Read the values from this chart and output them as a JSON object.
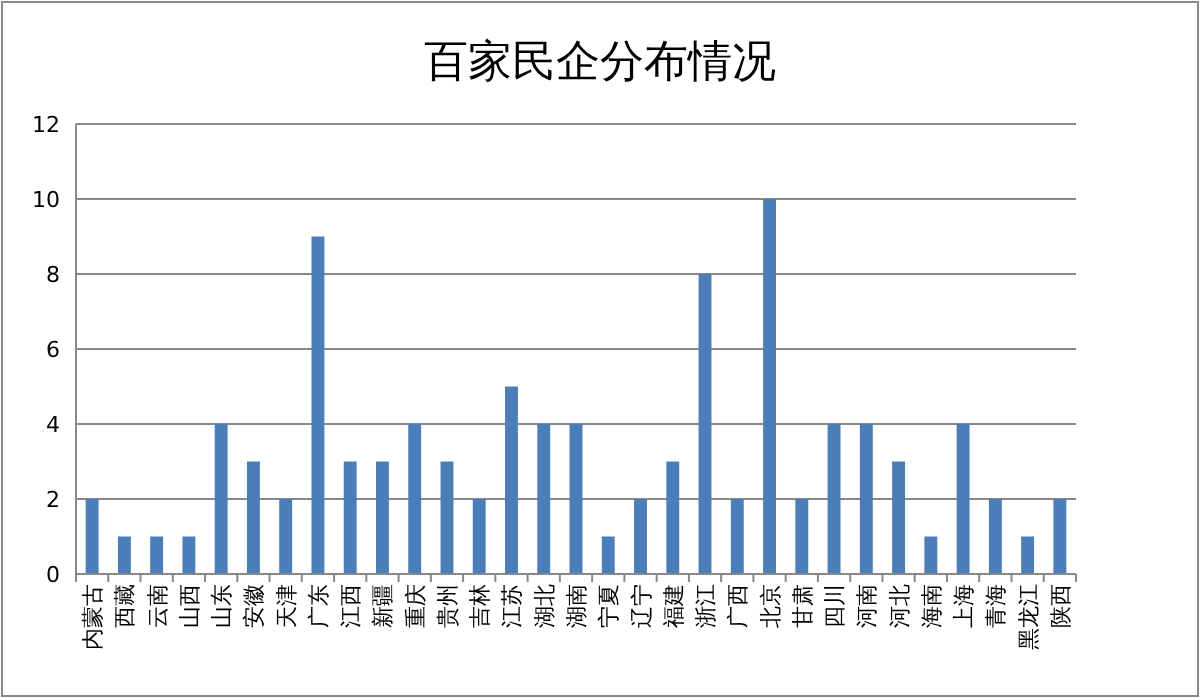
{
  "chart_data": {
    "type": "bar",
    "title": "百家民企分布情况",
    "categories": [
      "内蒙古",
      "西藏",
      "云南",
      "山西",
      "山东",
      "安徽",
      "天津",
      "广东",
      "江西",
      "新疆",
      "重庆",
      "贵州",
      "吉林",
      "江苏",
      "湖北",
      "湖南",
      "宁夏",
      "辽宁",
      "福建",
      "浙江",
      "广西",
      "北京",
      "甘肃",
      "四川",
      "河南",
      "河北",
      "海南",
      "上海",
      "青海",
      "黑龙江",
      "陕西"
    ],
    "values": [
      2,
      1,
      1,
      1,
      4,
      3,
      2,
      9,
      3,
      3,
      4,
      3,
      2,
      5,
      4,
      4,
      1,
      2,
      3,
      8,
      2,
      10,
      2,
      4,
      4,
      3,
      1,
      4,
      2,
      1,
      2
    ],
    "color": "#4a7ebb",
    "ylim": [
      0,
      12
    ],
    "yticks": [
      0,
      2,
      4,
      6,
      8,
      10,
      12
    ],
    "grid": "y"
  }
}
